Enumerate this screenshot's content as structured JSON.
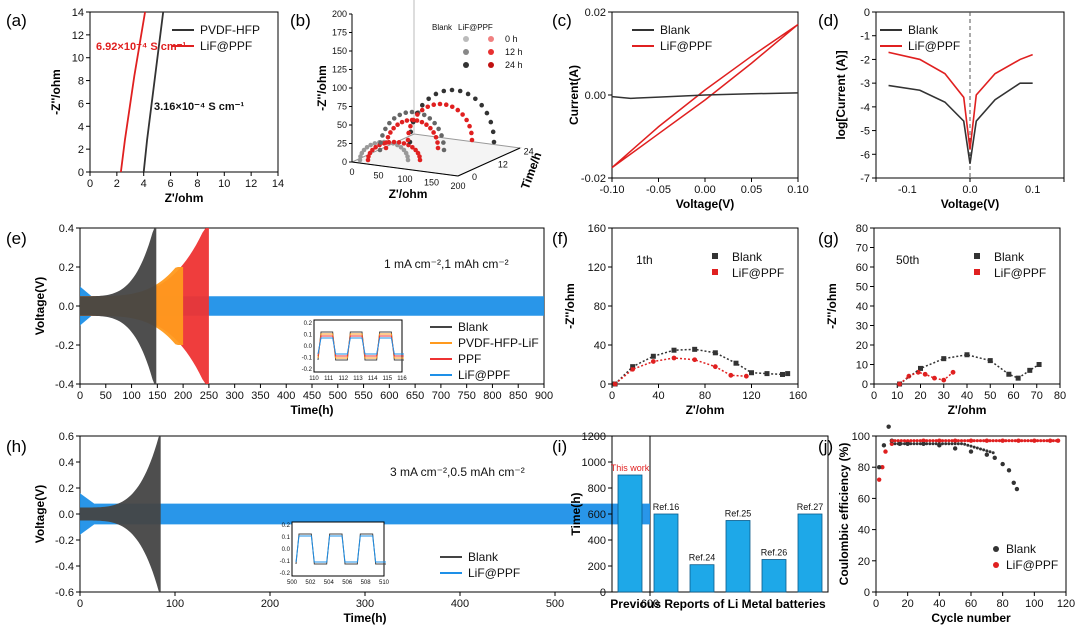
{
  "panels": {
    "a": {
      "label": "(a)",
      "type": "line",
      "xlabel": "Z'/ohm",
      "ylabel": "-Z''/ohm",
      "xlim": [
        0,
        14
      ],
      "ylim": [
        0,
        14
      ],
      "xticks": [
        "0",
        "2",
        "4",
        "6",
        "8",
        "10",
        "12",
        "14"
      ],
      "yticks": [
        "0",
        "2",
        "4",
        "6",
        "8",
        "10",
        "12",
        "14"
      ],
      "legend": [
        {
          "name": "PVDF-HFP",
          "color": "#333333"
        },
        {
          "name": "LiF@PPF",
          "color": "#e02020"
        }
      ],
      "annotations": {
        "red": "6.92×10⁻⁴ S cm⁻¹",
        "black": "3.16×10⁻⁴ S cm⁻¹"
      },
      "series": [
        {
          "name": "PVDF-HFP",
          "x": [
            4.0,
            4.25,
            4.55,
            4.85,
            5.15,
            5.45
          ],
          "y": [
            0,
            2.8,
            5.6,
            8.4,
            11.2,
            14
          ]
        },
        {
          "name": "LiF@PPF",
          "x": [
            2.3,
            2.6,
            2.95,
            3.3,
            3.7,
            4.1
          ],
          "y": [
            0,
            2.8,
            5.6,
            8.4,
            11.2,
            14
          ]
        }
      ]
    },
    "b": {
      "label": "(b)",
      "type": "3d-scatter",
      "xlabel": "Z'/ohm",
      "ylabel": "-Z''/ohm",
      "zlabel": "Time/h",
      "xticks": [
        "0",
        "50",
        "100",
        "150",
        "200"
      ],
      "yticks": [
        "0",
        "25",
        "50",
        "75",
        "100",
        "125",
        "150",
        "175",
        "200"
      ],
      "zticks": [
        "0",
        "12",
        "24"
      ],
      "legend_headers": [
        "Blank",
        "LiF@PPF"
      ],
      "legend_rows": [
        "0 h",
        "12 h",
        "24 h"
      ]
    },
    "c": {
      "label": "(c)",
      "type": "line",
      "xlabel": "Voltage(V)",
      "ylabel": "Current(A)",
      "xlim": [
        -0.1,
        0.1
      ],
      "ylim": [
        -0.02,
        0.02
      ],
      "xticks": [
        "-0.10",
        "-0.05",
        "0.00",
        "0.05",
        "0.10"
      ],
      "yticks": [
        "-0.02",
        "0.00",
        "0.02"
      ],
      "legend": [
        {
          "name": "Blank",
          "color": "#333333"
        },
        {
          "name": "LiF@PPF",
          "color": "#e02020"
        }
      ],
      "series": [
        {
          "name": "Blank",
          "x": [
            -0.1,
            -0.08,
            -0.05,
            0.0,
            0.05,
            0.1
          ],
          "y": [
            -0.0004,
            -0.0008,
            -0.0005,
            0.0,
            0.0003,
            0.0005
          ]
        },
        {
          "name": "LiF@PPF",
          "x": [
            -0.1,
            -0.05,
            0.0,
            0.05,
            0.1
          ],
          "y": [
            -0.0175,
            -0.0085,
            0.0,
            0.0085,
            0.017
          ]
        }
      ]
    },
    "d": {
      "label": "(d)",
      "type": "line",
      "xlabel": "Voltage(V)",
      "ylabel": "log[Current (A)]",
      "xlim": [
        -0.15,
        0.15
      ],
      "ylim": [
        -7,
        0
      ],
      "xticks": [
        "-0.1",
        "0.0",
        "0.1"
      ],
      "yticks": [
        "-7",
        "-6",
        "-5",
        "-4",
        "-3",
        "-2",
        "-1",
        "0"
      ],
      "legend": [
        {
          "name": "Blank",
          "color": "#333333"
        },
        {
          "name": "LiF@PPF",
          "color": "#e02020"
        }
      ],
      "series": [
        {
          "name": "Blank",
          "x": [
            -0.13,
            -0.08,
            -0.04,
            -0.01,
            0.0,
            0.01,
            0.04,
            0.08,
            0.1
          ],
          "y": [
            -3.1,
            -3.3,
            -3.8,
            -4.6,
            -6.4,
            -4.6,
            -3.7,
            -3.0,
            -3.0
          ]
        },
        {
          "name": "LiF@PPF",
          "x": [
            -0.13,
            -0.08,
            -0.04,
            -0.01,
            0.0,
            0.01,
            0.04,
            0.08,
            0.1
          ],
          "y": [
            -1.7,
            -2.0,
            -2.6,
            -3.6,
            -5.8,
            -3.5,
            -2.6,
            -2.0,
            -1.8
          ]
        }
      ]
    },
    "e": {
      "label": "(e)",
      "type": "area",
      "xlabel": "Time(h)",
      "ylabel": "Voltage(V)",
      "xlim": [
        0,
        900
      ],
      "ylim": [
        -0.4,
        0.4
      ],
      "xticks": [
        "0",
        "50",
        "100",
        "150",
        "200",
        "250",
        "300",
        "350",
        "400",
        "450",
        "500",
        "550",
        "600",
        "650",
        "700",
        "750",
        "800",
        "850",
        "900"
      ],
      "yticks": [
        "-0.4",
        "-0.2",
        "0.0",
        "0.2",
        "0.4"
      ],
      "condition": "1 mA cm⁻²,1 mAh cm⁻²",
      "inset_xticks": [
        "110",
        "111",
        "112",
        "113",
        "114",
        "115",
        "116"
      ],
      "inset_yticks": [
        "0.2",
        "0.1",
        "0.0",
        "-0.1",
        "-0.2"
      ],
      "legend": [
        {
          "name": "Blank",
          "color": "#444444"
        },
        {
          "name": "PVDF-HFP-LiF",
          "color": "#ff9a1e"
        },
        {
          "name": "PPF",
          "color": "#ee3333"
        },
        {
          "name": "LiF@PPF",
          "color": "#1e90e8"
        }
      ],
      "series": [
        {
          "name": "Blank",
          "end_h": 148,
          "max_v": 0.4
        },
        {
          "name": "PVDF-HFP-LiF",
          "end_h": 200,
          "max_v": 0.2
        },
        {
          "name": "PPF",
          "end_h": 250,
          "max_v": 0.4
        },
        {
          "name": "LiF@PPF",
          "end_h": 900,
          "max_v": 0.05
        }
      ]
    },
    "f": {
      "label": "(f)",
      "type": "scatter",
      "xlabel": "Z'/ohm",
      "ylabel": "-Z''/ohm",
      "xlim": [
        0,
        180
      ],
      "ylim": [
        0,
        180
      ],
      "xticks": [
        "0",
        "40",
        "80",
        "120",
        "160"
      ],
      "yticks": [
        "0",
        "40",
        "80",
        "120",
        "160"
      ],
      "cycle_note": "1th",
      "legend": [
        {
          "name": "Blank",
          "color": "#333333"
        },
        {
          "name": "LiF@PPF",
          "color": "#e02020"
        }
      ],
      "series": [
        {
          "name": "Blank",
          "x": [
            3,
            20,
            40,
            60,
            80,
            100,
            120,
            135,
            150,
            165,
            170
          ],
          "y": [
            0,
            20,
            32,
            39,
            40,
            36,
            24,
            13,
            12,
            11,
            12
          ]
        },
        {
          "name": "LiF@PPF",
          "x": [
            3,
            20,
            40,
            60,
            80,
            100,
            115,
            130
          ],
          "y": [
            0,
            17,
            26,
            30,
            28,
            20,
            10,
            9
          ]
        }
      ]
    },
    "g": {
      "label": "(g)",
      "type": "scatter",
      "xlabel": "Z'/ohm",
      "ylabel": "-Z''/ohm",
      "xlim": [
        0,
        80
      ],
      "ylim": [
        0,
        80
      ],
      "xticks": [
        "0",
        "10",
        "20",
        "30",
        "40",
        "50",
        "60",
        "70",
        "80"
      ],
      "yticks": [
        "0",
        "10",
        "20",
        "30",
        "40",
        "50",
        "60",
        "70",
        "80"
      ],
      "cycle_note": "50th",
      "legend": [
        {
          "name": "Blank",
          "color": "#333333"
        },
        {
          "name": "LiF@PPF",
          "color": "#e02020"
        }
      ],
      "series": [
        {
          "name": "Blank",
          "x": [
            11,
            20,
            30,
            40,
            50,
            58,
            62,
            67,
            71
          ],
          "y": [
            0,
            8,
            13,
            15,
            12,
            5,
            3,
            7,
            10
          ]
        },
        {
          "name": "LiF@PPF",
          "x": [
            11,
            15,
            19,
            22,
            26,
            30,
            34
          ],
          "y": [
            0,
            4,
            6,
            5,
            3,
            2,
            6
          ]
        }
      ]
    },
    "h": {
      "label": "(h)",
      "type": "area",
      "xlabel": "Time(h)",
      "ylabel": "Voltage(V)",
      "xlim": [
        0,
        650
      ],
      "ylim": [
        -0.6,
        0.6
      ],
      "xticks": [
        "0",
        "100",
        "200",
        "300",
        "400",
        "500",
        "600"
      ],
      "yticks": [
        "-0.6",
        "-0.4",
        "-0.2",
        "0.0",
        "0.2",
        "0.4",
        "0.6"
      ],
      "condition": "3 mA cm⁻²,0.5 mAh cm⁻²",
      "inset_xticks": [
        "500",
        "502",
        "504",
        "506",
        "508",
        "510"
      ],
      "inset_yticks": [
        "0.2",
        "0.1",
        "0.0",
        "-0.1",
        "-0.2"
      ],
      "legend": [
        {
          "name": "Blank",
          "color": "#444444"
        },
        {
          "name": "LiF@PPF",
          "color": "#1e90e8"
        }
      ],
      "series": [
        {
          "name": "Blank",
          "end_h": 92,
          "max_v": 0.6
        },
        {
          "name": "LiF@PPF",
          "end_h": 650,
          "max_v": 0.08
        }
      ]
    },
    "i": {
      "label": "(i)",
      "type": "bar",
      "xlabel": "Previous Reports of Li Metal batteries",
      "ylabel": "Time(h)",
      "ylim": [
        0,
        1200
      ],
      "yticks": [
        "0",
        "200",
        "400",
        "600",
        "800",
        "1000",
        "1200"
      ],
      "categories": [
        "This work",
        "Ref.16",
        "Ref.24",
        "Ref.25",
        "Ref.26",
        "Ref.27"
      ],
      "values": [
        900,
        600,
        210,
        550,
        250,
        600
      ]
    },
    "j": {
      "label": "(j)",
      "type": "scatter",
      "xlabel": "Cycle number",
      "ylabel": "Coulombic efficiency (%)",
      "xlim": [
        0,
        120
      ],
      "ylim": [
        0,
        100
      ],
      "xticks": [
        "0",
        "20",
        "40",
        "60",
        "80",
        "100",
        "120"
      ],
      "yticks": [
        "0",
        "20",
        "40",
        "60",
        "80",
        "100"
      ],
      "legend": [
        {
          "name": "Blank",
          "color": "#333333"
        },
        {
          "name": "LiF@PPF",
          "color": "#e02020"
        }
      ],
      "series": [
        {
          "name": "Blank",
          "x": [
            2,
            5,
            8,
            10,
            15,
            20,
            30,
            40,
            50,
            60,
            70,
            75,
            80,
            84,
            87,
            89
          ],
          "y": [
            80,
            94,
            106,
            97,
            95,
            95,
            95,
            94,
            92,
            90,
            88,
            86,
            82,
            78,
            70,
            66
          ]
        },
        {
          "name": "LiF@PPF",
          "x": [
            2,
            4,
            6,
            10,
            20,
            30,
            40,
            50,
            60,
            70,
            80,
            90,
            100,
            110,
            115
          ],
          "y": [
            72,
            80,
            90,
            95,
            96,
            97,
            97,
            97,
            97,
            97,
            97,
            97,
            97,
            97,
            97
          ]
        }
      ]
    }
  }
}
